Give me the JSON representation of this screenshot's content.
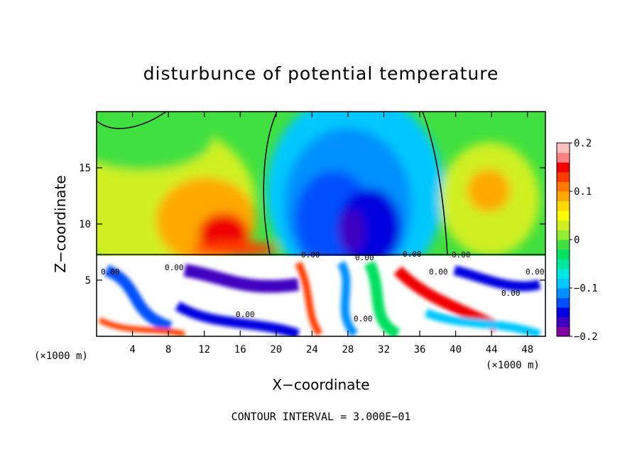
{
  "chart_data": {
    "type": "heatmap",
    "title": "disturbunce of potential temperature",
    "xlabel": "X−coordinate",
    "ylabel": "Z−coordinate",
    "x_unit_left": "(×1000 m)",
    "x_unit_right": "(×1000 m)",
    "xlim": [
      0,
      50
    ],
    "ylim": [
      0,
      20
    ],
    "x_ticks": [
      4,
      8,
      12,
      16,
      20,
      24,
      28,
      32,
      36,
      40,
      44,
      48
    ],
    "x_tick_labels": [
      "4",
      "8",
      "12",
      "16",
      "20",
      "24",
      "28",
      "32",
      "36",
      "40",
      "44",
      "48"
    ],
    "y_ticks": [
      5,
      10,
      15
    ],
    "y_tick_labels": [
      "5",
      "10",
      "15"
    ],
    "colorbar": {
      "range": [
        -0.2,
        0.2
      ],
      "tick_values": [
        0.2,
        0.1,
        0,
        -0.1,
        -0.2
      ],
      "tick_labels": [
        "0.2",
        "0.1",
        "0",
        "−0.1",
        "−0.2"
      ],
      "colors": [
        "#8000a0",
        "#4000c0",
        "#0000e0",
        "#0050ff",
        "#0090ff",
        "#00c8ff",
        "#00e8e0",
        "#00e8a0",
        "#00e060",
        "#40e040",
        "#90ee30",
        "#d0f020",
        "#ffff00",
        "#ffd800",
        "#ffa800",
        "#ff7800",
        "#ff3c00",
        "#f00000",
        "#ff8080",
        "#ffc0c0"
      ]
    },
    "contour_labels": [
      "0.00",
      "0.00",
      "0.00",
      "0.00",
      "0.00",
      "0.00",
      "0.00",
      "0.00",
      "0.00",
      "0.00",
      "0.00"
    ],
    "footnote": "CONTOUR INTERVAL = 3.000E−01"
  }
}
